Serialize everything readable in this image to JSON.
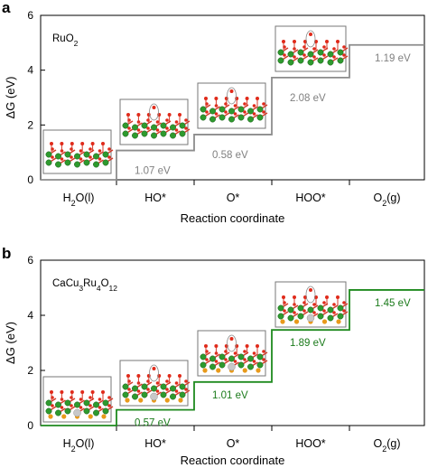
{
  "chart_data": [
    {
      "type": "line",
      "panel_label": "a",
      "compound": "RuO",
      "compound_sub": "2",
      "step_color": "#8c8c8c",
      "annotation_color": "#808080",
      "categories": [
        "H2O(l)",
        "HO*",
        "O*",
        "HOO*",
        "O2(g)"
      ],
      "category_display": [
        {
          "main": "H",
          "sub": "2",
          "rest": "O(l)"
        },
        {
          "main": "HO",
          "sub": "",
          "rest": "*"
        },
        {
          "main": "O",
          "sub": "",
          "rest": "*"
        },
        {
          "main": "HOO",
          "sub": "",
          "rest": "*"
        },
        {
          "main": "O",
          "sub": "2",
          "rest": "(g)"
        }
      ],
      "values": [
        0,
        1.07,
        1.65,
        3.73,
        4.92
      ],
      "step_labels": [
        "1.07 eV",
        "0.58 eV",
        "2.08 eV",
        "1.19 eV"
      ],
      "ylabel": "ΔG (eV)",
      "xlabel": "Reaction coordinate",
      "ylim": [
        0,
        6
      ],
      "yticks": [
        "0",
        "2",
        "4",
        "6"
      ]
    },
    {
      "type": "line",
      "panel_label": "b",
      "compound": "CaCu",
      "compound_parts": [
        {
          "t": "CaCu",
          "sub": false
        },
        {
          "t": "3",
          "sub": true
        },
        {
          "t": "Ru",
          "sub": false
        },
        {
          "t": "4",
          "sub": true
        },
        {
          "t": "O",
          "sub": false
        },
        {
          "t": "12",
          "sub": true
        }
      ],
      "step_color": "#1f8a1f",
      "annotation_color": "#1a7a1a",
      "categories": [
        "H2O(l)",
        "HO*",
        "O*",
        "HOO*",
        "O2(g)"
      ],
      "category_display": [
        {
          "main": "H",
          "sub": "2",
          "rest": "O(l)"
        },
        {
          "main": "HO",
          "sub": "",
          "rest": "*"
        },
        {
          "main": "O",
          "sub": "",
          "rest": "*"
        },
        {
          "main": "HOO",
          "sub": "",
          "rest": "*"
        },
        {
          "main": "O",
          "sub": "2",
          "rest": "(g)"
        }
      ],
      "values": [
        0,
        0.57,
        1.58,
        3.47,
        4.92
      ],
      "step_labels": [
        "0.57 eV",
        "1.01 eV",
        "1.89 eV",
        "1.45 eV"
      ],
      "ylabel": "ΔG (eV)",
      "xlabel": "Reaction coordinate",
      "ylim": [
        0,
        6
      ],
      "yticks": [
        "0",
        "2",
        "4",
        "6"
      ]
    }
  ]
}
